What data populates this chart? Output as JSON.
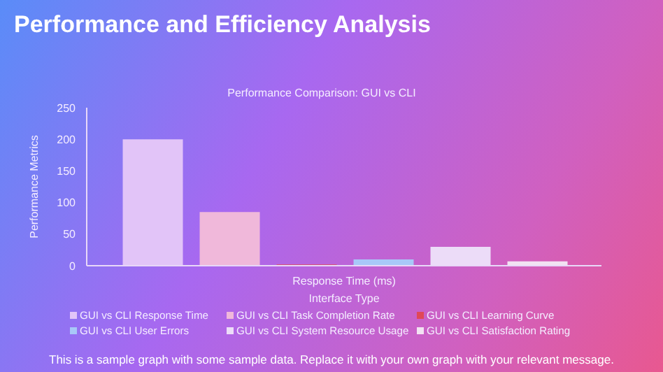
{
  "chart_data": {
    "type": "bar",
    "title": "Performance and Efficiency Analysis",
    "subtitle": "Performance Comparison: GUI vs CLI",
    "xlabel": "Interface Type",
    "ylabel": "Performance Metrics",
    "categories": [
      "Response Time (ms)"
    ],
    "series": [
      {
        "name": "GUI vs CLI Response Time",
        "color": "#e2c4f8",
        "values": [
          200
        ]
      },
      {
        "name": "GUI vs CLI Task Completion Rate",
        "color": "#f0b8da",
        "values": [
          85
        ]
      },
      {
        "name": "GUI vs CLI Learning Curve",
        "color": "#e04858",
        "values": [
          2
        ]
      },
      {
        "name": "GUI vs CLI User Errors",
        "color": "#a8c8f8",
        "values": [
          10
        ]
      },
      {
        "name": "GUI vs CLI System Resource Usage",
        "color": "#ecdcf8",
        "values": [
          30
        ]
      },
      {
        "name": "GUI vs CLI Satisfaction Rating",
        "color": "#f2e2f2",
        "values": [
          7
        ]
      }
    ],
    "ylim": [
      0,
      250
    ],
    "yticks": [
      0,
      50,
      100,
      150,
      200,
      250
    ],
    "grid": false,
    "legend": "bottom",
    "annotations": [
      "This is a sample graph with some sample data. Replace it with your own graph with your relevant message."
    ]
  }
}
